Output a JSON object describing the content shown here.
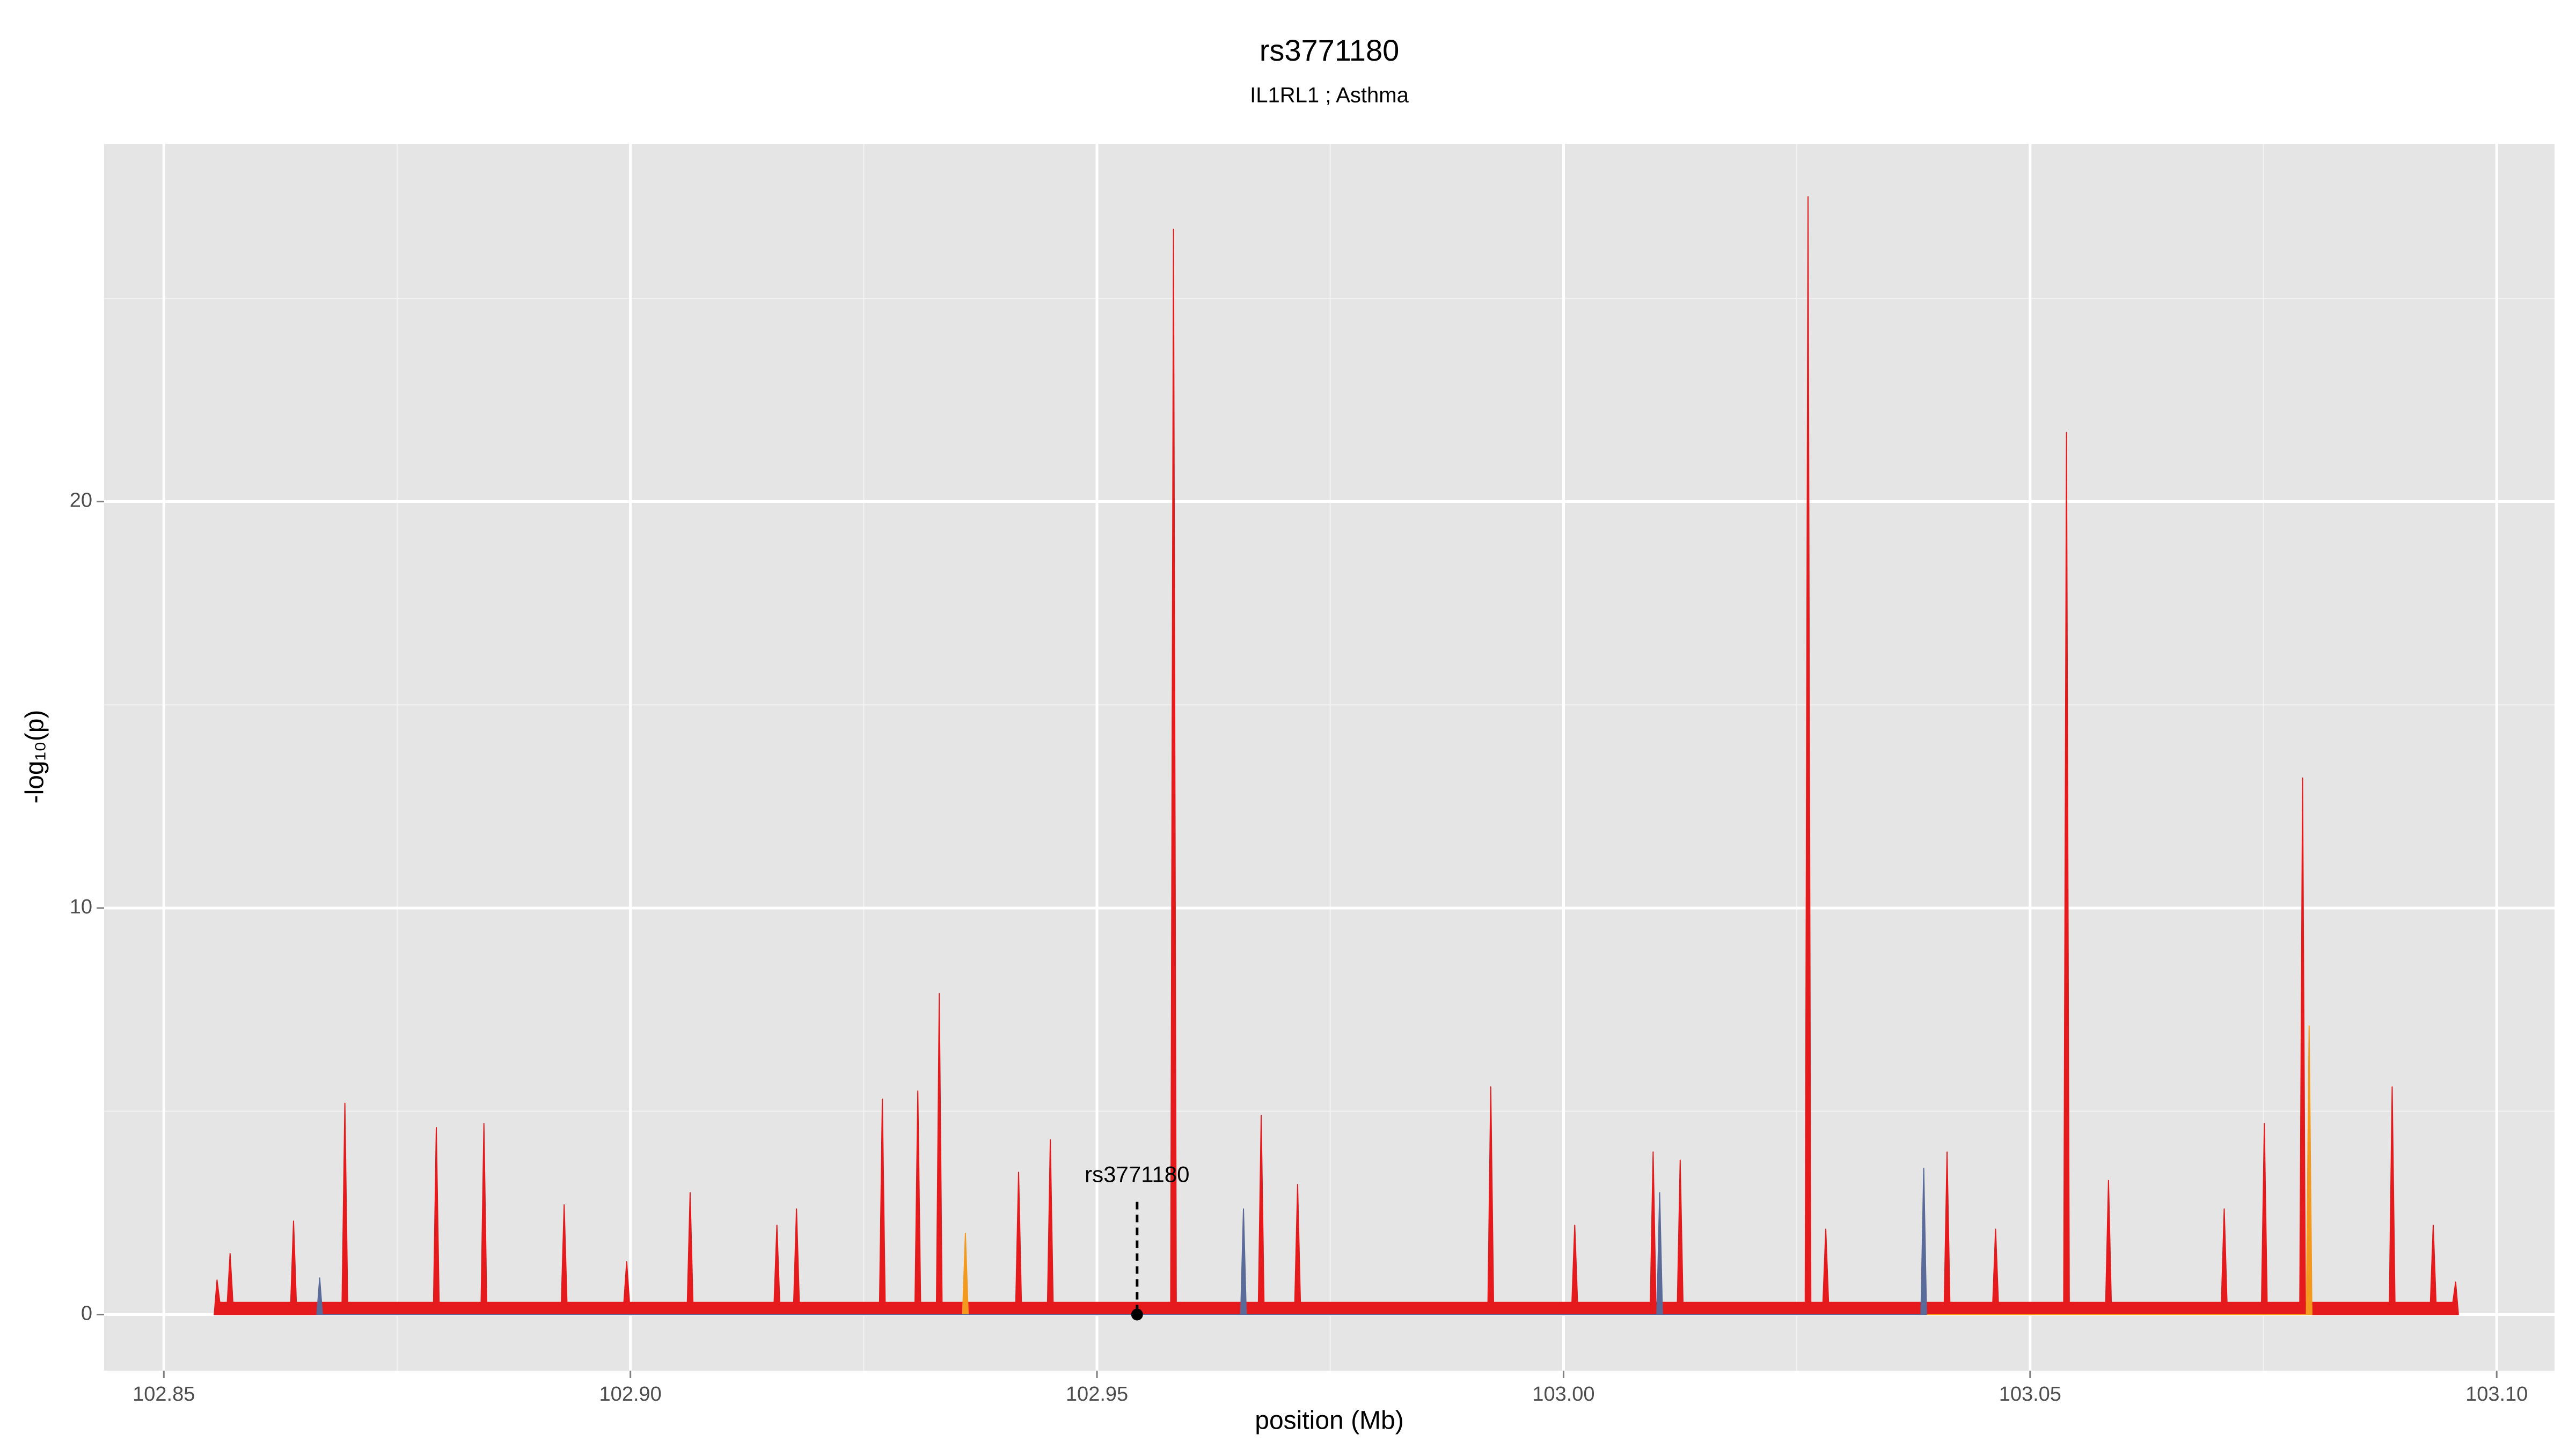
{
  "chart_data": {
    "type": "area",
    "title": "rs3771180",
    "subtitle": "IL1RL1 ; Asthma",
    "xlabel": "position (Mb)",
    "ylabel": "-log₁₀(p)",
    "xlim": [
      102.8436,
      103.1062
    ],
    "ylim": [
      -1.38,
      28.8
    ],
    "xticks": [
      102.85,
      {
        "value": 102.9,
        "label": "102.90"
      },
      102.95,
      {
        "value": 103,
        "label": "103.00"
      },
      103.05,
      {
        "value": 103.1,
        "label": "103.10"
      }
    ],
    "yticks": [
      0,
      10,
      20
    ],
    "grid": true,
    "series": [
      {
        "color": "#e41a1c",
        "x": [
          102.8554,
          102.8557,
          102.856,
          102.8568,
          102.8571,
          102.8574,
          102.8636,
          102.8639,
          102.8642,
          102.8691,
          102.8694,
          102.8697,
          102.8789,
          102.8792,
          102.8795,
          102.884,
          102.8843,
          102.8846,
          102.8926,
          102.8929,
          102.8932,
          102.8993,
          102.8996,
          102.8999,
          102.9061,
          102.9064,
          102.9067,
          102.9154,
          102.9157,
          102.916,
          102.9175,
          102.9178,
          102.9181,
          102.9267,
          102.927,
          102.9273,
          102.9305,
          102.9308,
          102.9311,
          102.9328,
          102.9331,
          102.9334,
          102.9413,
          102.9416,
          102.9419,
          102.9447,
          102.945,
          102.9453,
          102.9579,
          102.9582,
          102.9585,
          102.9673,
          102.9676,
          102.9679,
          102.9712,
          102.9715,
          102.9718,
          102.9919,
          102.9922,
          102.9925,
          103.0009,
          103.0012,
          103.0015,
          103.0093,
          103.0096,
          103.0099,
          103.0122,
          103.0125,
          103.0128,
          103.0259,
          103.0262,
          103.0265,
          103.0278,
          103.0281,
          103.0284,
          103.0408,
          103.0411,
          103.0414,
          103.046,
          103.0463,
          103.0466,
          103.0536,
          103.0539,
          103.0542,
          103.0581,
          103.0584,
          103.0587,
          103.0705,
          103.0708,
          103.0711,
          103.0748,
          103.0751,
          103.0754,
          103.0789,
          103.0792,
          103.0795,
          103.0885,
          103.0888,
          103.0891,
          103.0929,
          103.0932,
          103.0935,
          103.0953,
          103.0956,
          103.0959
        ],
        "values": [
          0,
          0.85,
          0.3,
          0.3,
          1.5,
          0.3,
          0.3,
          2.3,
          0.3,
          0.3,
          5.2,
          0.3,
          0.3,
          4.6,
          0.3,
          0.3,
          4.7,
          0.3,
          0.3,
          2.7,
          0.3,
          0.3,
          1.3,
          0.3,
          0.3,
          3.0,
          0.3,
          0.3,
          2.2,
          0.3,
          0.3,
          2.6,
          0.3,
          0.3,
          5.3,
          0.3,
          0.3,
          5.5,
          0.3,
          0.3,
          7.9,
          0.3,
          0.3,
          3.5,
          0.3,
          0.3,
          4.3,
          0.3,
          0.3,
          26.7,
          0.3,
          0.3,
          4.9,
          0.3,
          0.3,
          3.2,
          0.3,
          0.3,
          5.6,
          0.3,
          0.3,
          2.2,
          0.3,
          0.3,
          4.0,
          0.3,
          0.3,
          3.8,
          0.3,
          0.3,
          27.5,
          0.3,
          0.3,
          2.1,
          0.3,
          0.3,
          4.0,
          0.3,
          0.3,
          2.1,
          0.3,
          0.3,
          21.7,
          0.3,
          0.3,
          3.3,
          0.3,
          0.3,
          2.6,
          0.3,
          0.3,
          4.7,
          0.3,
          0.3,
          13.2,
          0.3,
          0.3,
          5.6,
          0.3,
          0.3,
          2.2,
          0.3,
          0.3,
          0.8,
          0
        ]
      },
      {
        "color": "#f39a1e",
        "x": [
          102.9356,
          102.9359,
          102.9362,
          103.0796,
          103.0799,
          103.0802
        ],
        "values": [
          0,
          2.0,
          0,
          0,
          7.1,
          0
        ]
      },
      {
        "color": "#5a6a99",
        "x": [
          102.8664,
          102.8667,
          102.867,
          102.9654,
          102.9657,
          102.966,
          103.01,
          103.0103,
          103.0106,
          103.0383,
          103.0386,
          103.0389
        ],
        "values": [
          0,
          0.9,
          0,
          0,
          2.6,
          0,
          0,
          3.0,
          0,
          0,
          3.6,
          0
        ]
      }
    ],
    "annotations": [
      {
        "label": "rs3771180",
        "x": 102.9543,
        "y": 0
      }
    ]
  }
}
